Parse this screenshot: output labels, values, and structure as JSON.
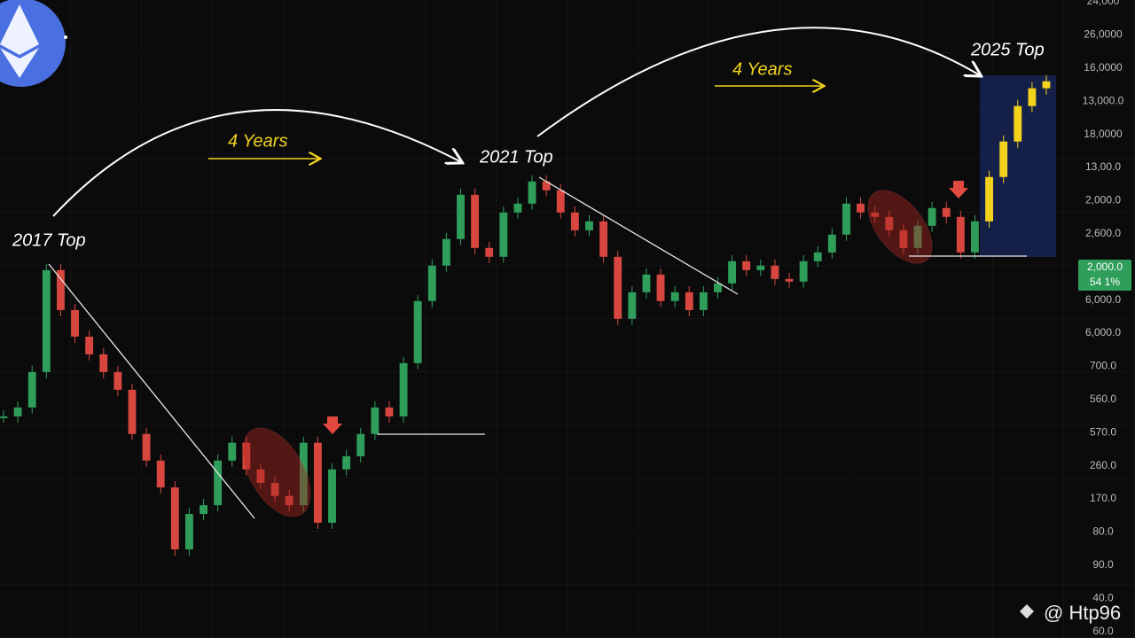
{
  "chart_data": {
    "type": "candlestick",
    "log": true,
    "ylim": [
      40,
      24000
    ],
    "values": [
      348,
      381,
      546,
      1540,
      1026,
      783,
      654,
      546,
      456,
      291,
      222,
      169,
      90,
      129,
      141,
      222,
      266,
      203,
      177,
      155,
      141,
      266,
      118,
      203,
      232,
      291,
      381,
      348,
      598,
      1124,
      1612,
      2112,
      3312,
      1929,
      1763,
      2766,
      3028,
      3792,
      3467,
      2766,
      2309,
      2527,
      1763,
      938,
      1229,
      1472,
      1124,
      1229,
      1026,
      1229,
      1345,
      1685,
      1540,
      1612,
      1407,
      1370,
      1685,
      1843,
      2208,
      3028,
      2766,
      2645,
      2309,
      1929,
      2416,
      2894,
      2645,
      1843,
      2527,
      3968,
      5692,
      8160,
      9780,
      10504
    ],
    "up_color": "#2f9e5b",
    "down_color": "#d8473f",
    "highlight_color": "#f2d21c",
    "y_axis_labels": [
      "24,000",
      "26,0000",
      "16,0000",
      "13,000.0",
      "18,0000",
      "13,00.0",
      "2,000.0",
      "2,600.0",
      "6,000.0",
      "6,000.0",
      "700.0",
      "560.0",
      "570.0",
      "260.0",
      "170.0",
      "80.0",
      "90.0",
      "40.0",
      "60.0"
    ],
    "price_tag": {
      "price": "2,000.0",
      "change": "54 1%"
    }
  },
  "annotations": {
    "top_2017": "2017 Top",
    "top_2021": "2021 Top",
    "top_2025": "2025 Top",
    "span_1": "4 Years",
    "span_2": "4 Years"
  },
  "watermark": "@ Htp96"
}
